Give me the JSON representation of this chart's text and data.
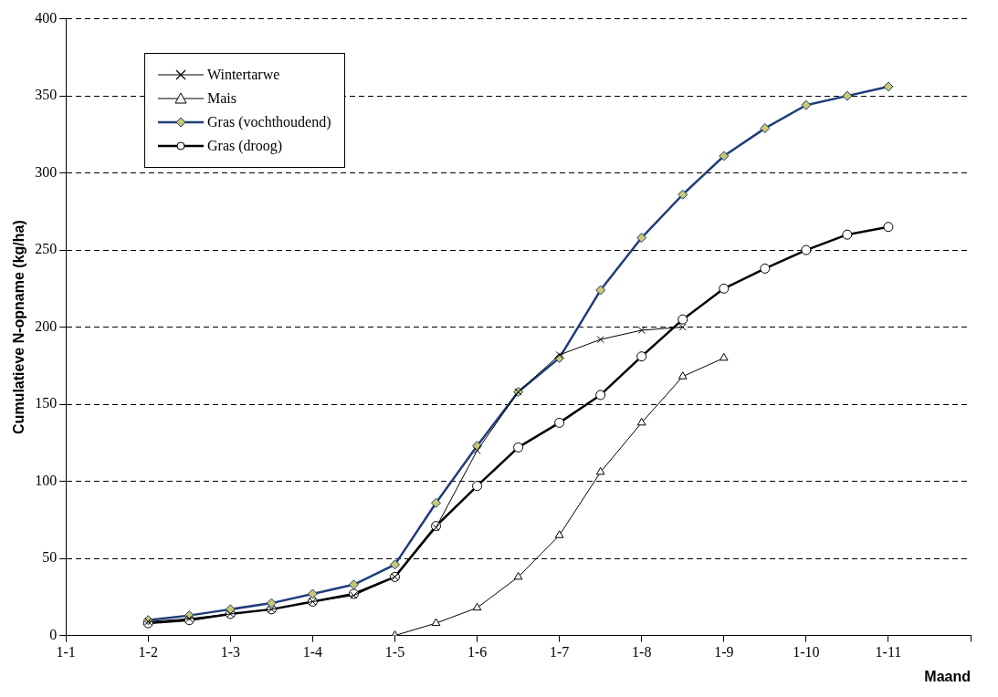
{
  "chart_data": {
    "type": "line",
    "xlabel": "Maand",
    "ylabel": "Cumulatieve N-opname (kg/ha)",
    "categories": [
      "1-1",
      null,
      "1-2",
      null,
      "1-3",
      null,
      "1-4",
      null,
      "1-5",
      null,
      "1-6",
      null,
      "1-7",
      null,
      "1-8",
      null,
      "1-9",
      null,
      "1-10",
      null,
      "1-11",
      null,
      null
    ],
    "ylim": [
      0,
      400
    ],
    "yticks": [
      0,
      50,
      100,
      150,
      200,
      250,
      300,
      350,
      400
    ],
    "grid": "y",
    "legend": "top left",
    "line_style": "solid",
    "series": [
      {
        "name": "Wintertarwe",
        "color": "#000000",
        "marker": "cross",
        "values": [
          null,
          null,
          9,
          11,
          14,
          17,
          22,
          26,
          38,
          70,
          120,
          158,
          182,
          192,
          198,
          200,
          null,
          null,
          null,
          null,
          null,
          null,
          null
        ]
      },
      {
        "name": "Mais",
        "color": "#000000",
        "marker": "triangle",
        "values": [
          null,
          null,
          null,
          null,
          null,
          null,
          null,
          null,
          0,
          8,
          18,
          38,
          65,
          106,
          138,
          168,
          180,
          null,
          null,
          null,
          null,
          null,
          null
        ]
      },
      {
        "name": "Gras (vochthoudend)",
        "color": "#1f3d7a",
        "marker": "diamond",
        "values": [
          null,
          null,
          10,
          13,
          17,
          21,
          27,
          33,
          46,
          86,
          123,
          158,
          180,
          224,
          258,
          286,
          311,
          329,
          344,
          350,
          356,
          null,
          null
        ]
      },
      {
        "name": "Gras (droog)",
        "color": "#000000",
        "marker": "circle",
        "values": [
          null,
          null,
          8,
          10,
          14,
          17,
          22,
          27,
          38,
          71,
          97,
          122,
          138,
          156,
          181,
          205,
          225,
          238,
          250,
          260,
          265,
          null,
          null
        ]
      }
    ]
  }
}
